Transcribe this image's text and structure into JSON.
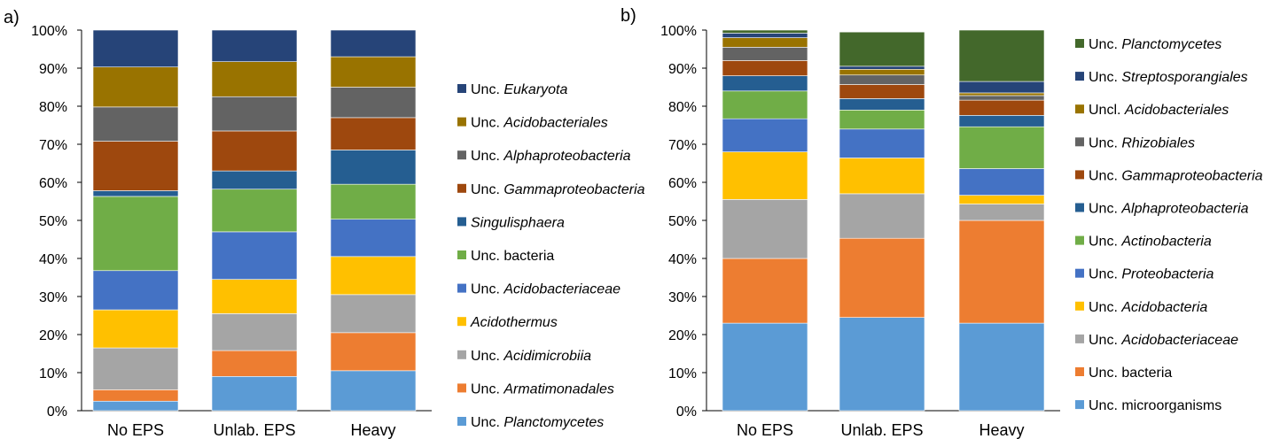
{
  "chart_data": [
    {
      "panel_label": "a)",
      "type": "bar",
      "stacked": true,
      "categories": [
        "No EPS",
        "Unlab. EPS",
        "Heavy"
      ],
      "y_ticks": [
        "0%",
        "10%",
        "20%",
        "30%",
        "40%",
        "50%",
        "60%",
        "70%",
        "80%",
        "90%",
        "100%"
      ],
      "ylim": [
        0,
        100
      ],
      "legend_position": "right",
      "series": [
        {
          "name": "Unc. Planctomycetes",
          "prefix": "Unc. ",
          "italic": "Planctomycetes",
          "color": "#5B9BD5",
          "values": [
            2.5,
            9,
            10.5
          ]
        },
        {
          "name": "Unc. Armatimonadales",
          "prefix": "Unc. ",
          "italic": "Armatimonadales",
          "color": "#ED7D31",
          "values": [
            3,
            6.8,
            10
          ]
        },
        {
          "name": "Unc. Acidimicrobiia",
          "prefix": "Unc. ",
          "italic": "Acidimicrobiia",
          "color": "#A5A5A5",
          "values": [
            11,
            9.7,
            10
          ]
        },
        {
          "name": "Acidothermus",
          "prefix": "",
          "italic": "Acidothermus",
          "color": "#FFC000",
          "values": [
            10,
            9,
            10
          ]
        },
        {
          "name": "Unc. Acidobacteriaceae",
          "prefix": "Unc. ",
          "italic": "Acidobacteriaceae",
          "color": "#4472C4",
          "values": [
            10.3,
            12.5,
            9.8
          ]
        },
        {
          "name": "Unc. bacteria",
          "prefix": "Unc. bacteria",
          "italic": "",
          "color": "#70AD47",
          "values": [
            19.5,
            11.2,
            9.2
          ]
        },
        {
          "name": "Singulisphaera",
          "prefix": "",
          "italic": "Singulisphaera",
          "color": "#255E91",
          "values": [
            1.5,
            4.8,
            9
          ]
        },
        {
          "name": "Unc. Gammaproteobacteria",
          "prefix": "Unc. ",
          "italic": "Gammaproteobacteria",
          "color": "#9E480E",
          "values": [
            13,
            10.5,
            8.5
          ]
        },
        {
          "name": "Unc. Alphaproteobacteria",
          "prefix": "Unc. ",
          "italic": "Alphaproteobacteria",
          "color": "#636363",
          "values": [
            9,
            9,
            8
          ]
        },
        {
          "name": "Unc. Acidobacteriales",
          "prefix": "Unc. ",
          "italic": "Acidobacteriales",
          "color": "#997300",
          "values": [
            10.5,
            9.2,
            8
          ]
        },
        {
          "name": "Unc. Eukaryota",
          "prefix": "Unc. ",
          "italic": "Eukaryota",
          "color": "#264478",
          "values": [
            9.7,
            8.3,
            7
          ]
        }
      ]
    },
    {
      "panel_label": "b)",
      "type": "bar",
      "stacked": true,
      "categories": [
        "No EPS",
        "Unlab. EPS",
        "Heavy"
      ],
      "y_ticks": [
        "0%",
        "10%",
        "20%",
        "30%",
        "40%",
        "50%",
        "60%",
        "70%",
        "80%",
        "90%",
        "100%"
      ],
      "ylim": [
        0,
        100
      ],
      "legend_position": "right",
      "series": [
        {
          "name": "Unc. microorganisms",
          "prefix": "Unc. microorganisms",
          "italic": "",
          "color": "#5B9BD5",
          "values": [
            23,
            24.5,
            23
          ]
        },
        {
          "name": "Unc. bacteria",
          "prefix": "Unc. bacteria",
          "italic": "",
          "color": "#ED7D31",
          "values": [
            17,
            20.8,
            27
          ]
        },
        {
          "name": "Unc. Acidobacteriaceae",
          "prefix": "Unc. ",
          "italic": "Acidobacteriaceae",
          "color": "#A5A5A5",
          "values": [
            15.5,
            11.7,
            4.3
          ]
        },
        {
          "name": "Unc. Acidobacteria",
          "prefix": "Unc. ",
          "italic": "Acidobacteria",
          "color": "#FFC000",
          "values": [
            12.5,
            9.4,
            2.3
          ]
        },
        {
          "name": "Unc. Proteobacteria",
          "prefix": "Unc. ",
          "italic": "Proteobacteria",
          "color": "#4472C4",
          "values": [
            8.7,
            7.6,
            7
          ]
        },
        {
          "name": "Unc. Actinobacteria",
          "prefix": "Unc. ",
          "italic": "Actinobacteria",
          "color": "#70AD47",
          "values": [
            7.3,
            5,
            11
          ]
        },
        {
          "name": "Unc. Alphaproteobacteria",
          "prefix": "Unc. ",
          "italic": "Alphaproteobacteria",
          "color": "#255E91",
          "values": [
            4,
            3,
            3
          ]
        },
        {
          "name": "Unc. Gammaproteobacteria",
          "prefix": "Unc. ",
          "italic": "Gammaproteobacteria",
          "color": "#9E480E",
          "values": [
            4,
            3.7,
            4
          ]
        },
        {
          "name": "Unc. Rhizobiales",
          "prefix": "Unc. ",
          "italic": "Rhizobiales",
          "color": "#636363",
          "values": [
            3.5,
            2.5,
            1.2
          ]
        },
        {
          "name": "Uncl. Acidobacteriales",
          "prefix": "Uncl. ",
          "italic": "Acidobacteriales",
          "color": "#997300",
          "values": [
            2.5,
            1.5,
            0.7
          ]
        },
        {
          "name": "Unc. Streptosporangiales",
          "prefix": "Unc. ",
          "italic": "Streptosporangiales",
          "color": "#264478",
          "values": [
            1.2,
            0.8,
            3
          ]
        },
        {
          "name": "Unc. Planctomycetes",
          "prefix": "Unc. ",
          "italic": "Planctomycetes",
          "color": "#43682B",
          "values": [
            0.8,
            9,
            13.5
          ]
        }
      ]
    }
  ]
}
